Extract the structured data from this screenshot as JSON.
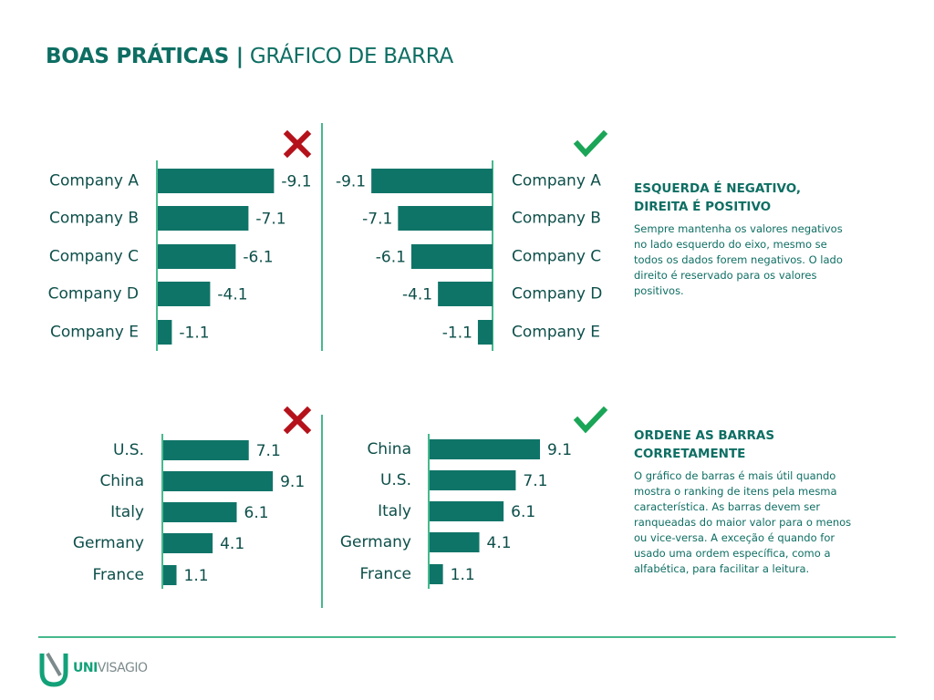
{
  "header": {
    "title_bold": "BOAS PRÁTICAS |",
    "title_rest": "GRÁFICO DE BARRA"
  },
  "colors": {
    "bar": "#0f7468",
    "axis": "#46b98d",
    "text": "#0d4f4a",
    "heading": "#0e6e63",
    "wrong": "#b5121b",
    "right": "#1aa557"
  },
  "chart_data": [
    {
      "type": "bar",
      "orientation": "horizontal",
      "verdict": "wrong",
      "categories": [
        "Company A",
        "Company B",
        "Company C",
        "Company D",
        "Company E"
      ],
      "values": [
        -9.1,
        -7.1,
        -6.1,
        -4.1,
        -1.1
      ],
      "data_labels": [
        "-9.1",
        "-7.1",
        "-6.1",
        "-4.1",
        "-1.1"
      ],
      "bar_direction": "right",
      "label_side": "left"
    },
    {
      "type": "bar",
      "orientation": "horizontal",
      "verdict": "right",
      "categories": [
        "Company A",
        "Company B",
        "Company C",
        "Company D",
        "Company E"
      ],
      "values": [
        -9.1,
        -7.1,
        -6.1,
        -4.1,
        -1.1
      ],
      "data_labels": [
        "-9.1",
        "-7.1",
        "-6.1",
        "-4.1",
        "-1.1"
      ],
      "bar_direction": "left",
      "label_side": "right"
    },
    {
      "type": "bar",
      "orientation": "horizontal",
      "verdict": "wrong",
      "categories": [
        "U.S.",
        "China",
        "Italy",
        "Germany",
        "France"
      ],
      "values": [
        7.1,
        9.1,
        6.1,
        4.1,
        1.1
      ],
      "data_labels": [
        "7.1",
        "9.1",
        "6.1",
        "4.1",
        "1.1"
      ],
      "bar_direction": "right",
      "label_side": "left"
    },
    {
      "type": "bar",
      "orientation": "horizontal",
      "verdict": "right",
      "categories": [
        "China",
        "U.S.",
        "Italy",
        "Germany",
        "France"
      ],
      "values": [
        9.1,
        7.1,
        6.1,
        4.1,
        1.1
      ],
      "data_labels": [
        "9.1",
        "7.1",
        "6.1",
        "4.1",
        "1.1"
      ],
      "bar_direction": "right",
      "label_side": "left"
    }
  ],
  "sections": [
    {
      "title": "ESQUERDA É NEGATIVO,\nDIREITA É POSITIVO",
      "body": "Sempre mantenha os valores negativos no lado esquerdo do eixo, mesmo se todos os dados forem negativos. O lado direito é reservado para os valores positivos."
    },
    {
      "title": "ORDENE AS BARRAS\nCORRETAMENTE",
      "body": "O gráfico de barras é mais útil quando mostra o ranking de itens pela mesma característica. As barras devem ser ranqueadas do maior valor para o menos ou vice-versa. A exceção é quando for usado uma ordem específica, como a alfabética, para facilitar a leitura."
    }
  ],
  "footer": {
    "logo_icon": "univisagio-u-logo-icon",
    "logo_bold": "UNI",
    "logo_rest": "VISAGIO"
  }
}
